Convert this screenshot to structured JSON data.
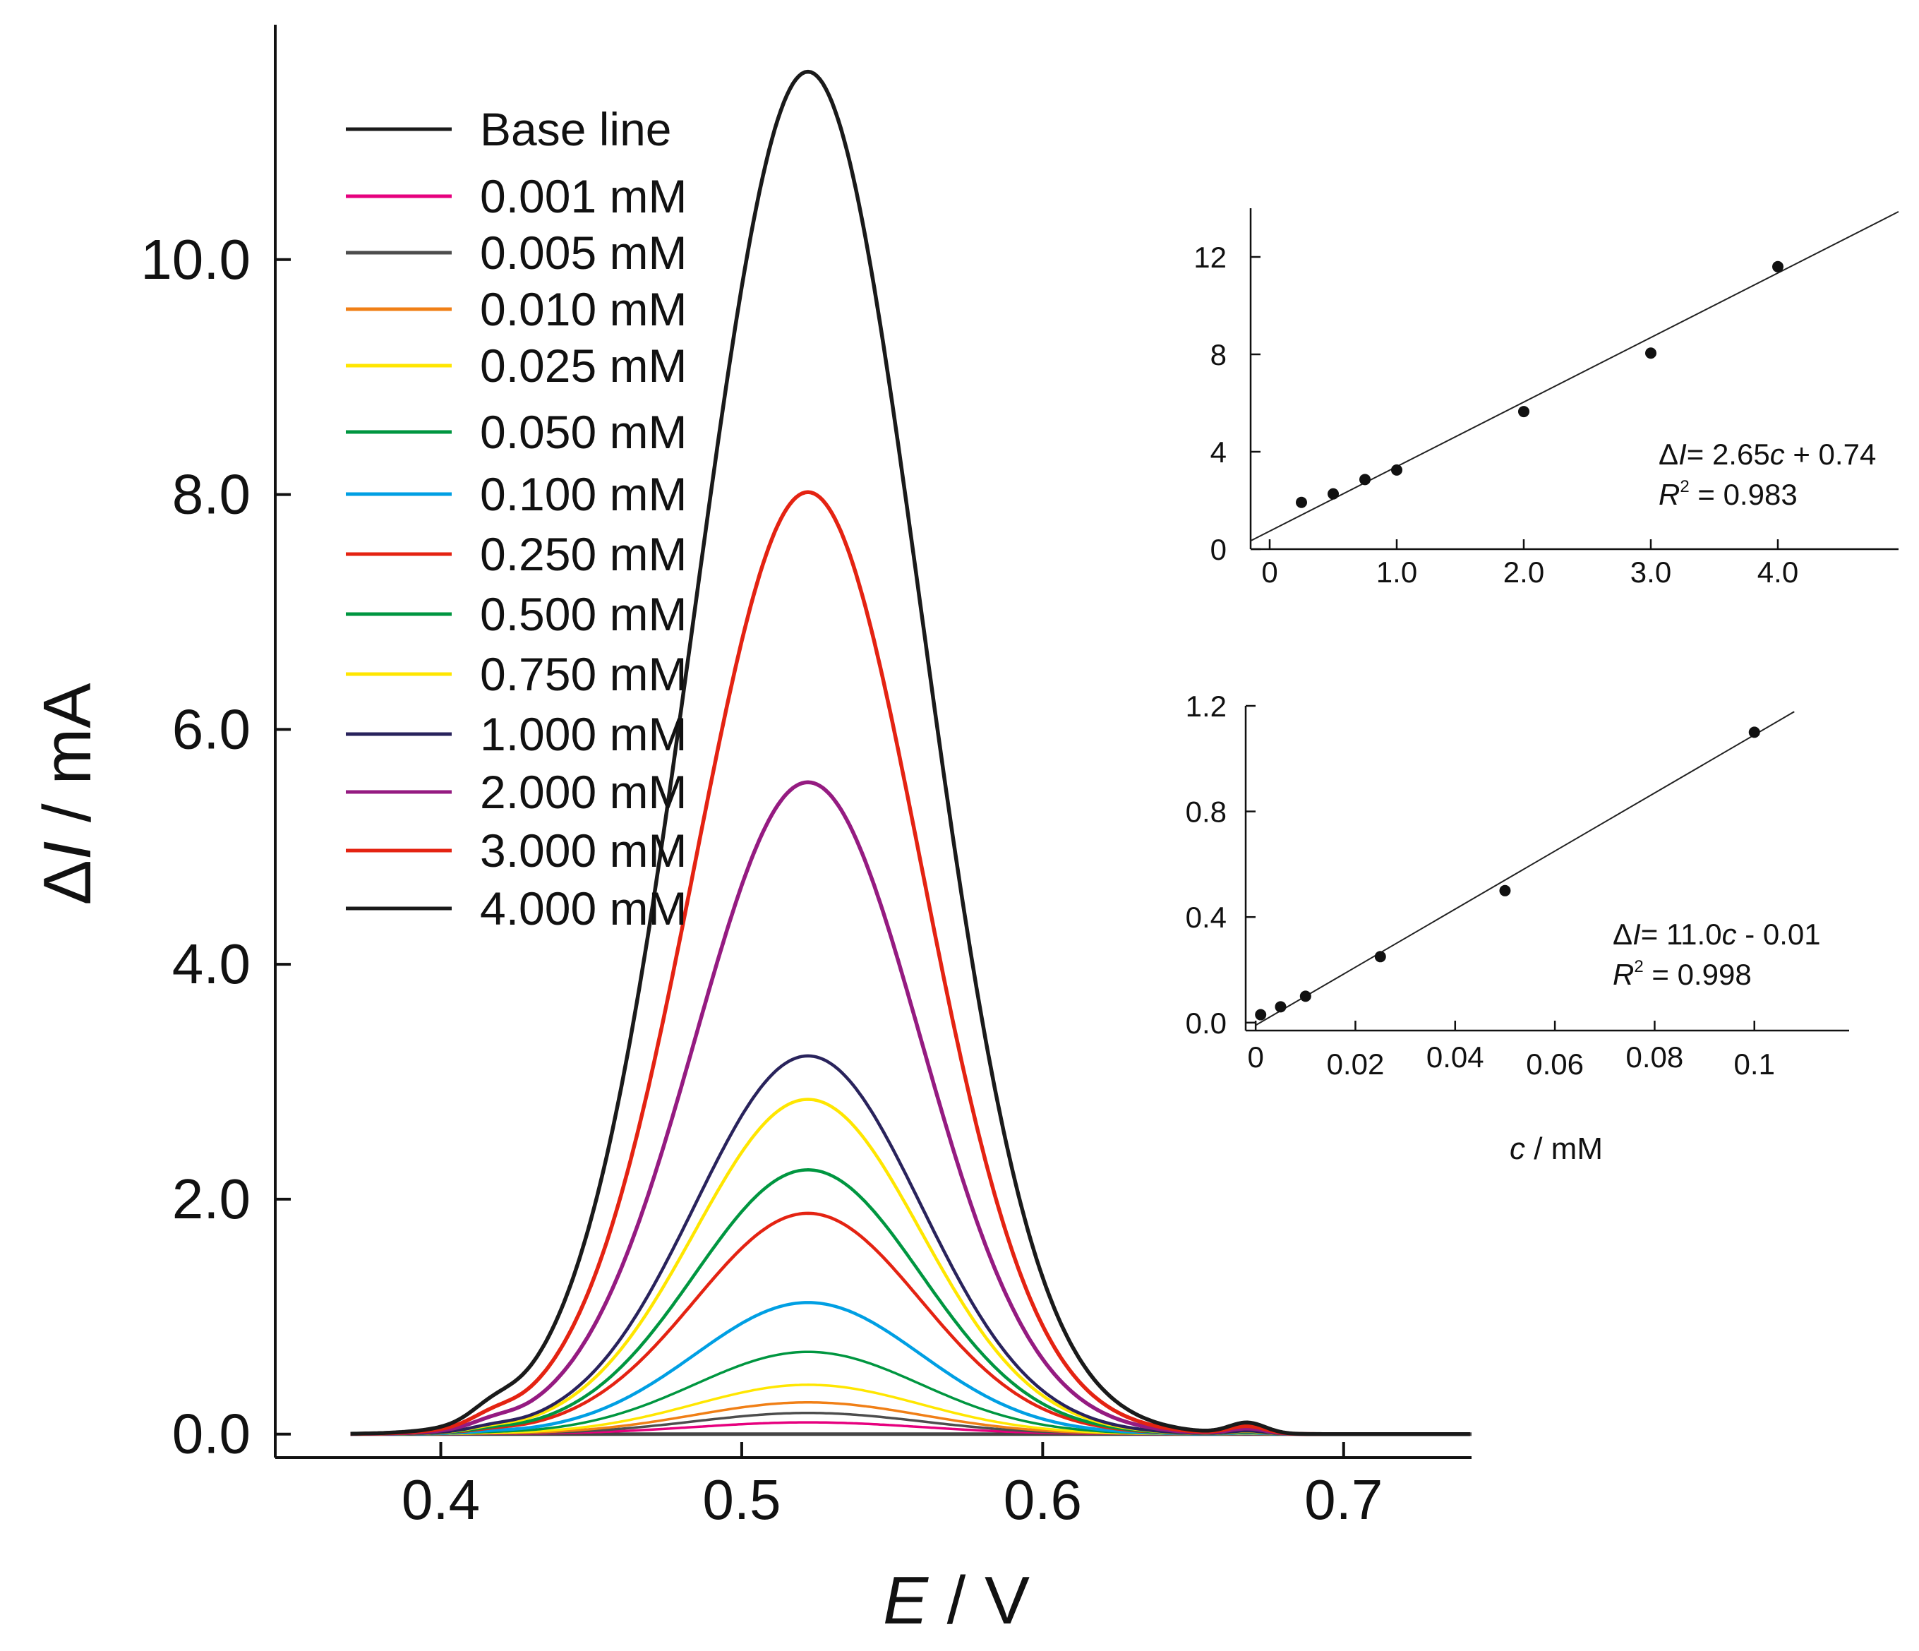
{
  "chart_data": [
    {
      "type": "line",
      "xlabel_italic": "E",
      "xlabel_rest": " / V",
      "ylabel_prefix": "Δ",
      "ylabel_italic": "I",
      "ylabel_rest": " / mA",
      "xlim": [
        0.345,
        0.7425
      ],
      "ylim": [
        -0.2,
        12.0
      ],
      "xticks": [
        0.4,
        0.5,
        0.6,
        0.7
      ],
      "xtick_labels": [
        "0.4",
        "0.5",
        "0.6",
        "0.7"
      ],
      "yticks": [
        0.0,
        2.0,
        4.0,
        6.0,
        8.0,
        10.0
      ],
      "ytick_labels": [
        "0.0",
        "2.0",
        "4.0",
        "6.0",
        "8.0",
        "10.0"
      ],
      "peak_potential": 0.522,
      "curve_range": [
        0.37,
        0.7425
      ],
      "series": [
        {
          "name": "Base line",
          "peak": 0.0,
          "color": "#1a1a1a"
        },
        {
          "name": "0.001 mM",
          "peak": 0.1,
          "color": "#e6007e"
        },
        {
          "name": "0.005 mM",
          "peak": 0.18,
          "color": "#4d4d4d"
        },
        {
          "name": "0.010 mM",
          "peak": 0.27,
          "color": "#f07f16"
        },
        {
          "name": "0.025 mM",
          "peak": 0.42,
          "color": "#ffe600"
        },
        {
          "name": "0.050 mM",
          "peak": 0.7,
          "color": "#009640"
        },
        {
          "name": "0.100 mM",
          "peak": 1.12,
          "color": "#009fe3"
        },
        {
          "name": "0.250 mM",
          "peak": 1.88,
          "color": "#e42312"
        },
        {
          "name": "0.500 mM",
          "peak": 2.25,
          "color": "#009640"
        },
        {
          "name": "0.750 mM",
          "peak": 2.85,
          "color": "#ffe600"
        },
        {
          "name": "1.000 mM",
          "peak": 3.22,
          "color": "#29235c"
        },
        {
          "name": "2.000 mM",
          "peak": 5.55,
          "color": "#951b81"
        },
        {
          "name": "3.000 mM",
          "peak": 8.02,
          "color": "#e42312"
        },
        {
          "name": "4.000 mM",
          "peak": 11.6,
          "color": "#1a1a1a"
        }
      ]
    },
    {
      "type": "scatter",
      "xlim": [
        -0.15,
        4.95
      ],
      "ylim": [
        0.0,
        14.0
      ],
      "xticks": [
        0,
        1.0,
        2.0,
        3.0,
        4.0
      ],
      "xtick_labels": [
        "0",
        "1.0",
        "2.0",
        "3.0",
        "4.0"
      ],
      "yticks": [
        0,
        4,
        8,
        12
      ],
      "ytick_labels": [
        "0",
        "4",
        "8",
        "12"
      ],
      "x": [
        0.25,
        0.5,
        0.75,
        1.0,
        2.0,
        3.0,
        4.0
      ],
      "y": [
        1.92,
        2.27,
        2.86,
        3.25,
        5.65,
        8.05,
        11.6
      ],
      "fit": {
        "slope": 2.65,
        "intercept": 0.74
      },
      "equation": {
        "lhs_prefix": "Δ",
        "lhs_italic": "I",
        "eq_sign": "= ",
        "slope": "2.65",
        "var": "c",
        "op_intercept": " + 0.74"
      },
      "r2": {
        "letter": "R",
        "sup": "2",
        "value": " = 0.983"
      }
    },
    {
      "type": "scatter",
      "xlim": [
        -0.002,
        0.119
      ],
      "ylim": [
        -0.03,
        1.2
      ],
      "xticks": [
        0,
        0.02,
        0.04,
        0.06,
        0.08,
        0.1
      ],
      "xtick_labels": [
        "0",
        "0.02",
        "0.04",
        "0.06",
        "0.08",
        "0.1"
      ],
      "yticks": [
        0.0,
        0.4,
        0.8,
        1.2
      ],
      "ytick_labels": [
        "0.0",
        "0.4",
        "0.8",
        "1.2"
      ],
      "x": [
        0.001,
        0.005,
        0.01,
        0.025,
        0.05,
        0.1
      ],
      "y": [
        0.03,
        0.06,
        0.1,
        0.25,
        0.5,
        1.1
      ],
      "fit": {
        "slope": 11.0,
        "intercept": -0.01
      },
      "equation": {
        "lhs_prefix": "Δ",
        "lhs_italic": "I",
        "eq_sign": "= ",
        "slope": "11.0",
        "var": "c",
        "op_intercept": " - 0.01"
      },
      "r2": {
        "letter": "R",
        "sup": "2",
        "value": " = 0.998"
      },
      "xlabel_italic": "c",
      "xlabel_rest": " / mM"
    }
  ]
}
